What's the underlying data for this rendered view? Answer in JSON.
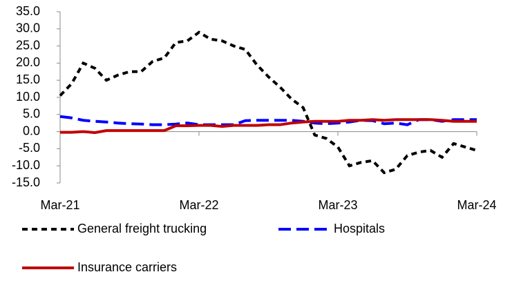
{
  "chart_data": {
    "type": "line",
    "categories": [
      "Mar-21",
      null,
      null,
      null,
      null,
      null,
      null,
      null,
      null,
      null,
      null,
      null,
      "Mar-22",
      null,
      null,
      null,
      null,
      null,
      null,
      null,
      null,
      null,
      null,
      null,
      "Mar-23",
      null,
      null,
      null,
      null,
      null,
      null,
      null,
      null,
      null,
      null,
      null,
      "Mar-24"
    ],
    "series": [
      {
        "name": "General freight trucking",
        "color": "#000000",
        "dash": "8,6",
        "values": [
          10.5,
          14,
          20,
          18.5,
          15,
          16.5,
          17.5,
          17.5,
          20.5,
          21.5,
          26,
          26.5,
          29,
          27,
          26.5,
          25,
          24,
          19.5,
          16,
          13,
          9.5,
          7,
          -1,
          -2,
          -4.5,
          -10,
          -9,
          -8.5,
          -12,
          -11,
          -7,
          -6,
          -5.5,
          -7.5,
          -3.5,
          -4.5,
          -5.5
        ]
      },
      {
        "name": "Hospitals",
        "color": "#0000ff",
        "dash": "18,8",
        "values": [
          4.4,
          4,
          3.3,
          3,
          2.8,
          2.5,
          2.3,
          2.2,
          2,
          2,
          2.2,
          2.5,
          2,
          2,
          2,
          2,
          3.2,
          3.3,
          3.3,
          3.3,
          3.3,
          3,
          2.5,
          2.3,
          2.5,
          2.8,
          3.3,
          3.2,
          2.3,
          2.5,
          2,
          3.5,
          3.5,
          3,
          3.5,
          3.5,
          3.5
        ]
      },
      {
        "name": "Insurance carriers",
        "color": "#c00000",
        "dash": "none",
        "values": [
          -0.2,
          -0.2,
          0,
          -0.3,
          0.3,
          0.3,
          0.3,
          0.3,
          0.3,
          0.3,
          1.7,
          1.7,
          1.8,
          1.8,
          1.5,
          1.8,
          1.8,
          1.8,
          2,
          2,
          2.5,
          2.8,
          3,
          3,
          3,
          3.3,
          3.3,
          3.5,
          3.3,
          3.5,
          3.5,
          3.5,
          3.5,
          3.3,
          3,
          3,
          3
        ]
      }
    ],
    "ylim": [
      -15,
      35
    ],
    "yticks": [
      {
        "value": -15,
        "label": "-15.0"
      },
      {
        "value": -10,
        "label": "-10.0"
      },
      {
        "value": -5,
        "label": "-5.0"
      },
      {
        "value": 0,
        "label": "0.0"
      },
      {
        "value": 5,
        "label": "5.0"
      },
      {
        "value": 10,
        "label": "10.0"
      },
      {
        "value": 15,
        "label": "15.0"
      },
      {
        "value": 20,
        "label": "20.0"
      },
      {
        "value": 25,
        "label": "25.0"
      },
      {
        "value": 30,
        "label": "30.0"
      },
      {
        "value": 35,
        "label": "35.0"
      }
    ],
    "grid": false
  }
}
